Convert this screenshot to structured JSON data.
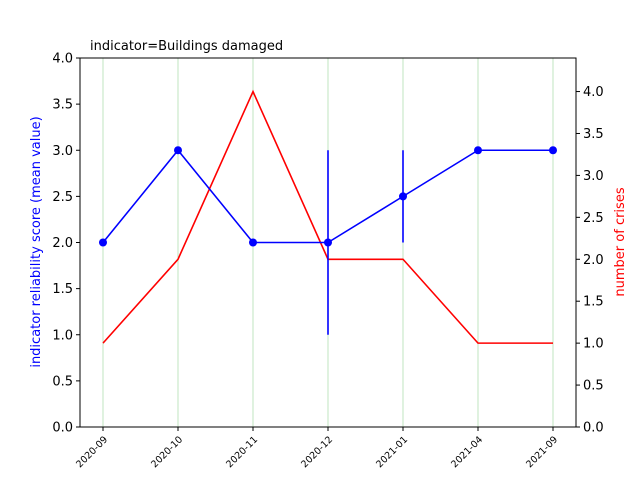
{
  "chart_data": {
    "type": "line",
    "title": "indicator=Buildings damaged",
    "categories": [
      "2020-09",
      "2020-10",
      "2020-11",
      "2020-12",
      "2021-01",
      "2021-04",
      "2021-09"
    ],
    "ylabel_left": "indicator reliability score (mean value)",
    "ylabel_right": "number of crises",
    "ylim_left": [
      0,
      4
    ],
    "ylim_right": [
      0,
      4.4
    ],
    "yticks_left": [
      "0.0",
      "0.5",
      "1.0",
      "1.5",
      "2.0",
      "2.5",
      "3.0",
      "3.5",
      "4.0"
    ],
    "yticks_right": [
      "0.0",
      "0.5",
      "1.0",
      "1.5",
      "2.0",
      "2.5",
      "3.0",
      "3.5",
      "4.0"
    ],
    "grid": "vertical, light green",
    "series": [
      {
        "axis": "left",
        "color": "#0000ff",
        "values": [
          2,
          3,
          2,
          2,
          2.5,
          3,
          3
        ],
        "error_ranges": [
          null,
          null,
          null,
          [
            1,
            3
          ],
          [
            2,
            3
          ],
          null,
          null
        ]
      },
      {
        "axis": "right",
        "color": "#ff0000",
        "values": [
          1,
          2,
          4,
          2,
          2,
          1,
          1
        ]
      }
    ]
  }
}
